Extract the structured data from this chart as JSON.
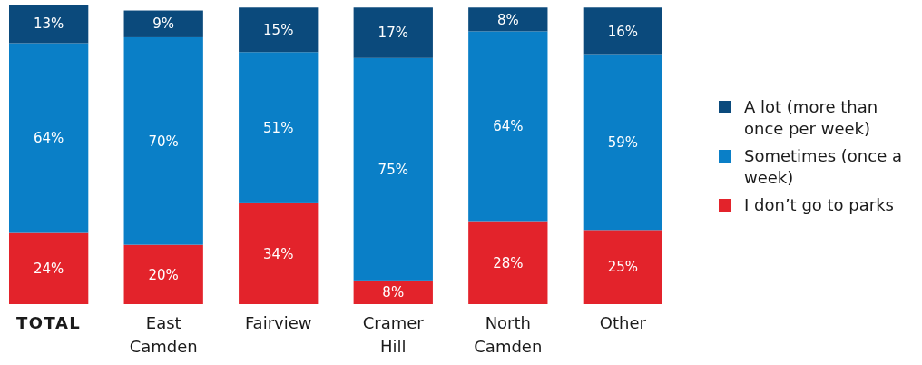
{
  "chart_data": {
    "type": "bar",
    "stacked": true,
    "legend": "right",
    "categories": [
      "TOTAL",
      "East Camden",
      "Fairview",
      "Cramer Hill",
      "North Camden",
      "Other"
    ],
    "series": [
      {
        "name": "I don’t go to parks",
        "color": "#e3232b",
        "values": [
          24,
          20,
          34,
          8,
          28,
          25
        ],
        "value_labels": [
          "24%",
          "20%",
          "34%",
          "8%",
          "28%",
          "25%"
        ]
      },
      {
        "name": "Sometimes (once a week)",
        "color": "#0a7fc7",
        "values": [
          64,
          70,
          51,
          75,
          64,
          59
        ],
        "value_labels": [
          "64%",
          "70%",
          "51%",
          "75%",
          "64%",
          "59%"
        ]
      },
      {
        "name": "A lot (more than once per week)",
        "color": "#0b4a7c",
        "values": [
          13,
          9,
          15,
          17,
          8,
          16
        ],
        "value_labels": [
          "13%",
          "9%",
          "15%",
          "17%",
          "8%",
          "16%"
        ]
      }
    ]
  }
}
